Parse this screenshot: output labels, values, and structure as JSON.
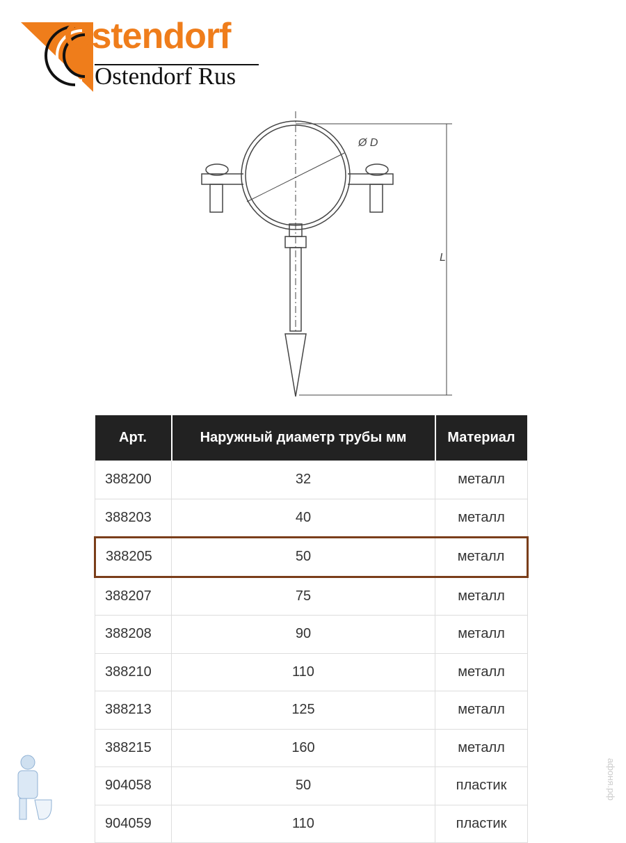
{
  "logo": {
    "brand": "Ostendorf",
    "subtitle": "Ostendorf Rus",
    "colors": {
      "orange": "#ef7d1b",
      "black": "#111111"
    }
  },
  "drawing": {
    "diameter_label": "Ø D",
    "length_label": "L"
  },
  "table": {
    "headers": [
      "Арт.",
      "Наружный диаметр трубы мм",
      "Материал"
    ],
    "rows": [
      [
        "388200",
        "32",
        "металл"
      ],
      [
        "388203",
        "40",
        "металл"
      ],
      [
        "388205",
        "50",
        "металл"
      ],
      [
        "388207",
        "75",
        "металл"
      ],
      [
        "388208",
        "90",
        "металл"
      ],
      [
        "388210",
        "110",
        "металл"
      ],
      [
        "388213",
        "125",
        "металл"
      ],
      [
        "388215",
        "160",
        "металл"
      ],
      [
        "904058",
        "50",
        "пластик"
      ],
      [
        "904059",
        "110",
        "пластик"
      ]
    ],
    "highlighted_row": "388205",
    "highlight_color": "#7a3e1a"
  },
  "watermark": "афоня.рф"
}
